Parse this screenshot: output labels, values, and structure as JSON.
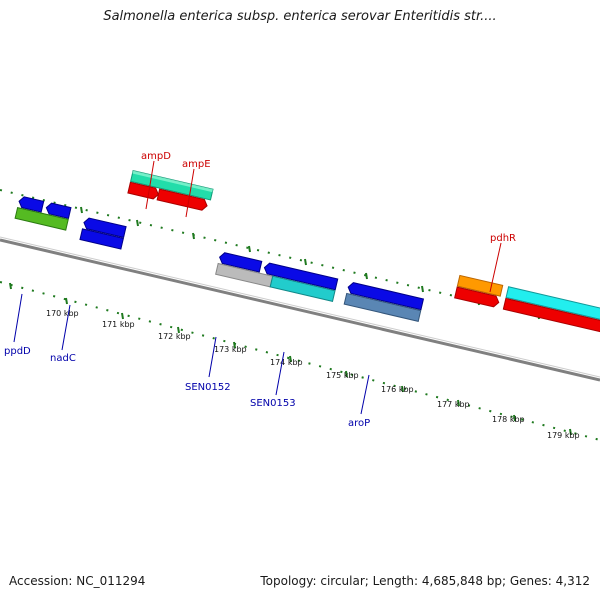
{
  "title": "Salmonella enterica subsp. enterica serovar Enteritidis str....",
  "footer": {
    "accession": "Accession: NC_011294",
    "topology": "Topology: circular; Length: 4,685,848 bp; Genes: 4,312"
  },
  "scale_labels": [
    "170 kbp",
    "171 kbp",
    "172 kbp",
    "173 kbp",
    "174 kbp",
    "175 kbp",
    "176 kbp",
    "177 kbp",
    "178 kbp",
    "179 kbp"
  ],
  "genes": [
    {
      "name": "ampD",
      "color": "#cc0000"
    },
    {
      "name": "ampE",
      "color": "#cc0000"
    },
    {
      "name": "pdhR",
      "color": "#cc0000"
    },
    {
      "name": "ppdD",
      "color": "#0000aa"
    },
    {
      "name": "nadC",
      "color": "#0000aa"
    },
    {
      "name": "SEN0152",
      "color": "#0000aa"
    },
    {
      "name": "SEN0153",
      "color": "#0000aa"
    },
    {
      "name": "aroP",
      "color": "#0000aa"
    }
  ],
  "colors": {
    "backbone": "#808080",
    "ticks": "#1f7a1f",
    "blue": "#0a0ae6",
    "red": "#ee0000",
    "teal": "#20e0a0",
    "cyan": "#22dddd",
    "orange": "#ff9900",
    "steel": "#5a86b4",
    "gray": "#bbbbbb",
    "green": "#55bb22"
  }
}
